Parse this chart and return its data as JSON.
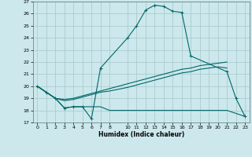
{
  "xlabel": "Humidex (Indice chaleur)",
  "bg_color": "#cce8ec",
  "grid_color": "#aaccd0",
  "line_color": "#006868",
  "x_ticks": [
    0,
    1,
    2,
    3,
    4,
    5,
    6,
    7,
    8,
    10,
    11,
    12,
    13,
    14,
    15,
    16,
    17,
    18,
    19,
    20,
    21,
    22,
    23
  ],
  "xlim": [
    -0.5,
    23.5
  ],
  "ylim": [
    17,
    27
  ],
  "y_ticks": [
    17,
    18,
    19,
    20,
    21,
    22,
    23,
    24,
    25,
    26,
    27
  ],
  "series": [
    {
      "x": [
        0,
        1,
        2,
        3,
        4,
        5,
        6,
        7,
        10,
        11,
        12,
        13,
        14,
        15,
        16,
        17,
        21,
        22,
        23
      ],
      "y": [
        20.0,
        19.5,
        19.0,
        18.2,
        18.3,
        18.3,
        17.3,
        21.5,
        24.0,
        25.0,
        26.3,
        26.7,
        26.6,
        26.2,
        26.1,
        22.5,
        21.2,
        19.0,
        17.5
      ],
      "marker": true
    },
    {
      "x": [
        0,
        1,
        2,
        3,
        4,
        5,
        6,
        7,
        8,
        10,
        11,
        12,
        13,
        14,
        15,
        16,
        17,
        18,
        19,
        20,
        21,
        23
      ],
      "y": [
        20.0,
        19.5,
        19.0,
        18.2,
        18.3,
        18.3,
        18.3,
        18.3,
        18.0,
        18.0,
        18.0,
        18.0,
        18.0,
        18.0,
        18.0,
        18.0,
        18.0,
        18.0,
        18.0,
        18.0,
        18.0,
        17.5
      ],
      "marker": false
    },
    {
      "x": [
        0,
        1,
        2,
        3,
        4,
        5,
        6,
        7,
        8,
        10,
        11,
        12,
        13,
        14,
        15,
        16,
        17,
        18,
        19,
        20,
        21
      ],
      "y": [
        20.0,
        19.5,
        19.0,
        18.8,
        18.9,
        19.1,
        19.3,
        19.5,
        19.6,
        19.9,
        20.1,
        20.3,
        20.5,
        20.7,
        20.9,
        21.1,
        21.2,
        21.4,
        21.5,
        21.6,
        21.5
      ],
      "marker": false
    },
    {
      "x": [
        0,
        1,
        2,
        3,
        4,
        5,
        6,
        7,
        8,
        10,
        11,
        12,
        13,
        14,
        15,
        16,
        17,
        18,
        19,
        20,
        21
      ],
      "y": [
        20.0,
        19.5,
        19.0,
        18.9,
        19.0,
        19.2,
        19.4,
        19.6,
        19.8,
        20.2,
        20.4,
        20.6,
        20.8,
        21.0,
        21.2,
        21.4,
        21.5,
        21.7,
        21.8,
        21.9,
        22.0
      ],
      "marker": false
    }
  ]
}
